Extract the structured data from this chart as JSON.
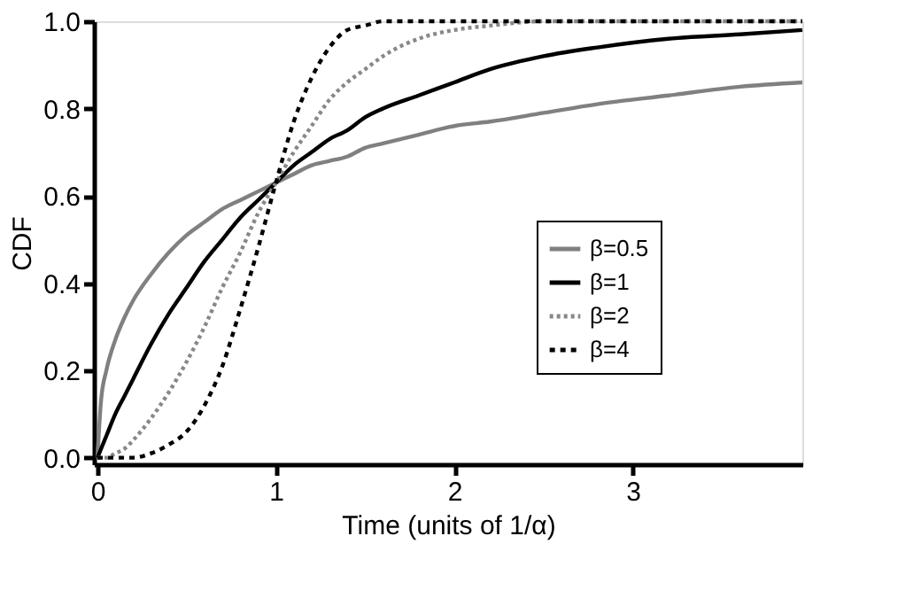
{
  "chart_data": {
    "type": "line",
    "xlabel": "Time (units of 1/α)",
    "ylabel": "CDF",
    "x": [
      0,
      0.02,
      0.05,
      0.1,
      0.15,
      0.2,
      0.3,
      0.4,
      0.5,
      0.6,
      0.7,
      0.8,
      0.9,
      1,
      1.1,
      1.2,
      1.3,
      1.4,
      1.5,
      1.6,
      1.8,
      2,
      2.2,
      2.5,
      2.8,
      3.2,
      3.6,
      3.95
    ],
    "series": [
      {
        "name": "β=0.5",
        "color": "#808080",
        "line_style": "solid",
        "values": [
          0,
          0.13,
          0.2,
          0.27,
          0.32,
          0.36,
          0.42,
          0.47,
          0.51,
          0.54,
          0.57,
          0.59,
          0.61,
          0.63,
          0.65,
          0.67,
          0.68,
          0.69,
          0.71,
          0.72,
          0.74,
          0.76,
          0.77,
          0.79,
          0.81,
          0.83,
          0.85,
          0.86
        ]
      },
      {
        "name": "β=1",
        "color": "#000000",
        "line_style": "solid",
        "values": [
          0,
          0.02,
          0.05,
          0.1,
          0.14,
          0.18,
          0.26,
          0.33,
          0.39,
          0.45,
          0.5,
          0.55,
          0.59,
          0.63,
          0.67,
          0.7,
          0.73,
          0.75,
          0.78,
          0.8,
          0.83,
          0.86,
          0.89,
          0.92,
          0.94,
          0.96,
          0.97,
          0.98
        ]
      },
      {
        "name": "β=2",
        "color": "#888888",
        "line_style": "dotted",
        "values": [
          0,
          0,
          0,
          0.01,
          0.02,
          0.04,
          0.09,
          0.15,
          0.22,
          0.3,
          0.39,
          0.47,
          0.56,
          0.63,
          0.7,
          0.76,
          0.82,
          0.86,
          0.89,
          0.92,
          0.96,
          0.98,
          0.99,
          1,
          1,
          1,
          1,
          1
        ]
      },
      {
        "name": "β=4",
        "color": "#000000",
        "line_style": "dotted",
        "values": [
          0,
          0,
          0,
          0,
          0,
          0,
          0.01,
          0.03,
          0.06,
          0.12,
          0.21,
          0.34,
          0.48,
          0.63,
          0.77,
          0.87,
          0.94,
          0.98,
          0.99,
          1,
          1,
          1,
          1,
          1,
          1,
          1,
          1,
          1
        ]
      }
    ],
    "xlim": [
      -0.02,
      3.95
    ],
    "xticks": [
      0,
      1,
      2,
      3
    ],
    "ylim": [
      -0.015,
      1.0
    ],
    "yticks": [
      {
        "value": 0,
        "label": "0.0"
      },
      {
        "value": 0.2,
        "label": "0.2"
      },
      {
        "value": 0.4,
        "label": "0.4"
      },
      {
        "value": 0.6,
        "label": "0.6"
      },
      {
        "value": 0.8,
        "label": "0.8"
      },
      {
        "value": 1,
        "label": "1.0"
      }
    ],
    "grid": false,
    "legend": "right"
  }
}
